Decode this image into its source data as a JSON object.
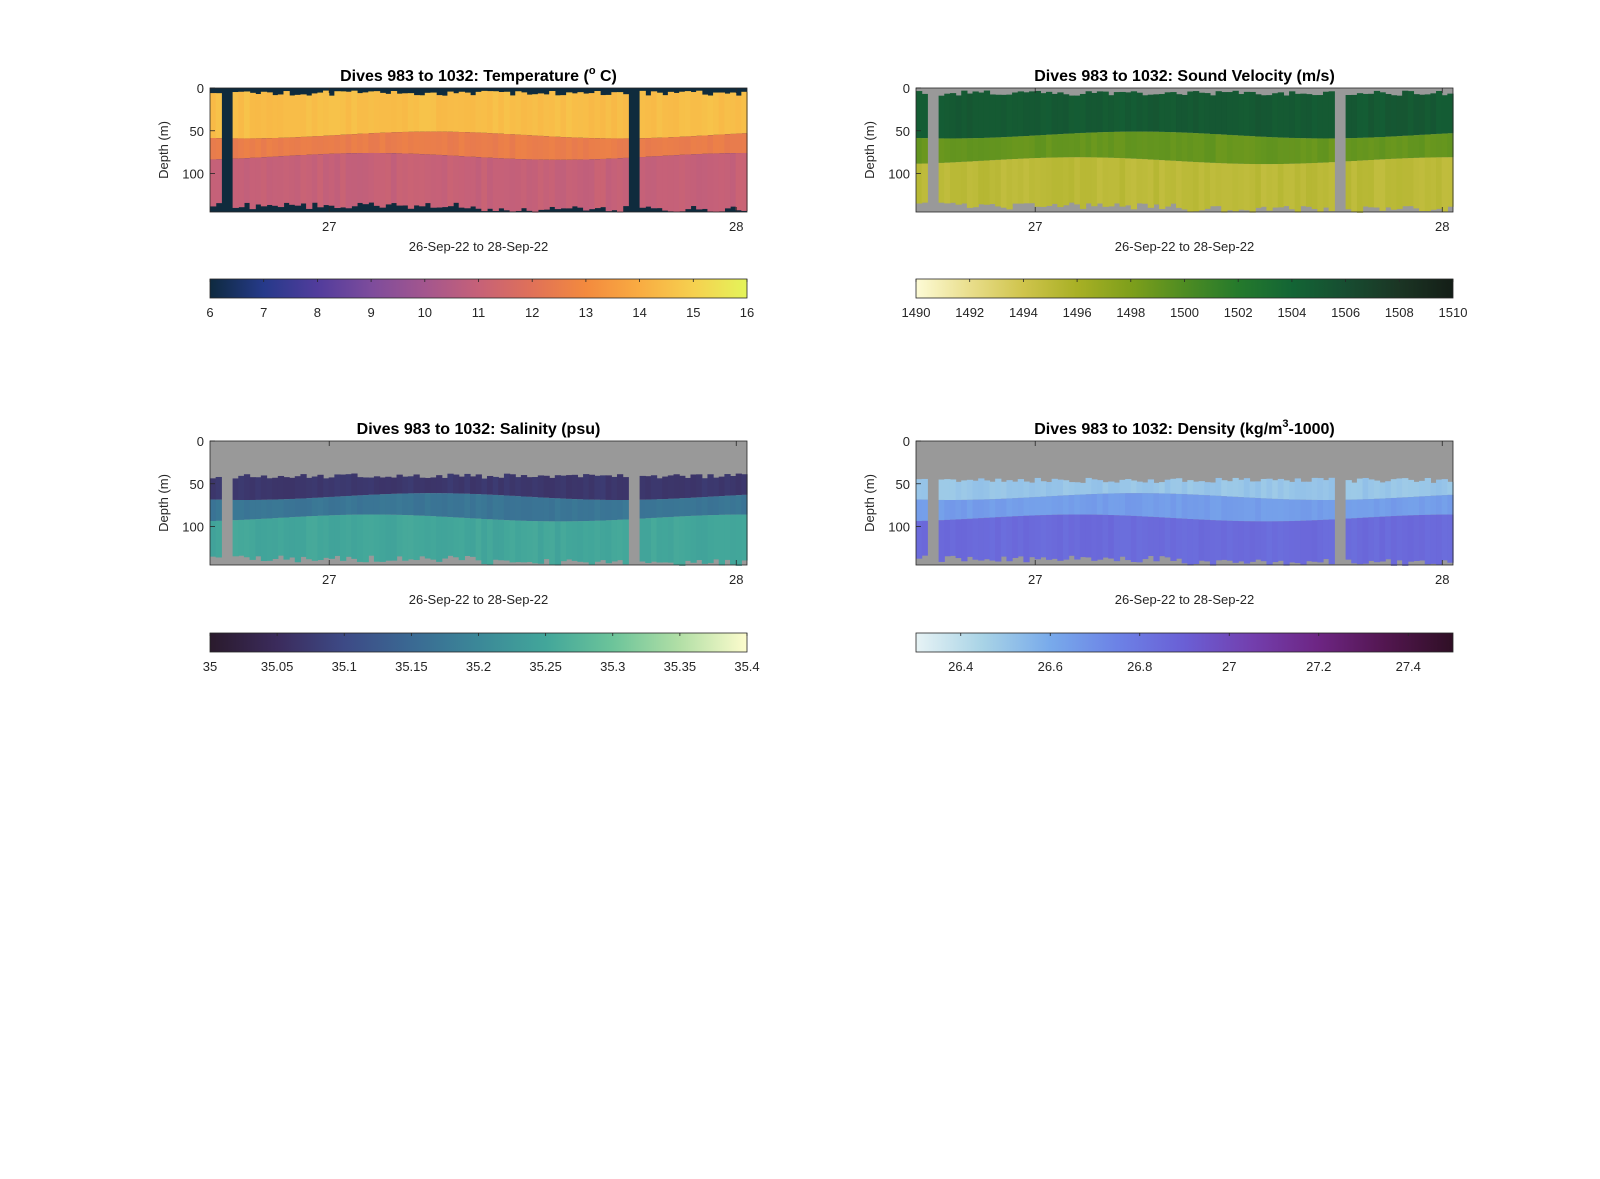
{
  "figure": {
    "common_xlabel": "26-Sep-22 to 28-Sep-22",
    "ylabel": "Depth (m)",
    "y_ticks": [
      "0",
      "50",
      "100"
    ],
    "x_ticks": [
      "27",
      "28"
    ],
    "mask_color": "#999999",
    "mask_color_temperature": "#0f2b3d"
  },
  "panels": [
    {
      "id": "temperature",
      "title_parts": {
        "pre": "Dives 983 to 1032: Temperature (",
        "sup": "o",
        "post": " C)"
      },
      "colorbar": {
        "ticks": [
          "6",
          "7",
          "8",
          "9",
          "10",
          "11",
          "12",
          "13",
          "14",
          "15",
          "16"
        ],
        "range": [
          6,
          16
        ],
        "stops": [
          "#0e2a3f",
          "#263a8a",
          "#513c9c",
          "#7d4c9c",
          "#a3568e",
          "#c66178",
          "#e07158",
          "#f38a3e",
          "#f9ac42",
          "#f6d04f",
          "#e4f45a"
        ]
      }
    },
    {
      "id": "sound-velocity",
      "title_parts": {
        "pre": "Dives 983 to 1032: Sound Velocity (m/s)",
        "sup": "",
        "post": ""
      },
      "colorbar": {
        "ticks": [
          "1490",
          "1492",
          "1494",
          "1496",
          "1498",
          "1500",
          "1502",
          "1504",
          "1506",
          "1508",
          "1510"
        ],
        "range": [
          1490,
          1510
        ],
        "stops": [
          "#fdfbd6",
          "#e9de8c",
          "#cfc44c",
          "#a8b025",
          "#7e9f1b",
          "#4e8c22",
          "#257a2c",
          "#136535",
          "#174d31",
          "#1b3524",
          "#141e17"
        ]
      }
    },
    {
      "id": "salinity",
      "title_parts": {
        "pre": "Dives 983 to 1032: Salinity (psu)",
        "sup": "",
        "post": ""
      },
      "colorbar": {
        "ticks": [
          "35",
          "35.05",
          "35.1",
          "35.15",
          "35.2",
          "35.25",
          "35.3",
          "35.35",
          "35.4"
        ],
        "range": [
          35,
          35.4
        ],
        "stops": [
          "#2a1a2c",
          "#3b2b5c",
          "#3d4a86",
          "#3a6993",
          "#3b8898",
          "#42a69a",
          "#6cc49a",
          "#b2dfa6",
          "#fdfccd"
        ]
      }
    },
    {
      "id": "density",
      "title_parts": {
        "pre": "Dives 983 to 1032: Density (kg/m",
        "sup": "3",
        "post": "-1000)"
      },
      "colorbar": {
        "ticks": [
          "26.4",
          "26.6",
          "26.8",
          "27",
          "27.2",
          "27.4"
        ],
        "range": [
          26.3,
          27.5
        ],
        "stops": [
          "#e7f3f5",
          "#a8d3e6",
          "#78aaeb",
          "#6c82e6",
          "#6a5fd5",
          "#733fae",
          "#6d2583",
          "#52164f",
          "#2f0f25"
        ]
      }
    }
  ],
  "chart_data": [
    {
      "type": "heatmap",
      "title": "Dives 983 to 1032: Temperature (o C)",
      "xlabel": "26-Sep-22 to 28-Sep-22",
      "ylabel": "Depth (m)",
      "y_range": [
        0,
        145
      ],
      "y_reversed": true,
      "x_ticks": [
        "27",
        "28"
      ],
      "colorbar_range": [
        6,
        16
      ],
      "layers": [
        {
          "depth_range_m": [
            5,
            55
          ],
          "value_approx": 14.5
        },
        {
          "depth_range_m": [
            55,
            80
          ],
          "value_approx": 12.5
        },
        {
          "depth_range_m": [
            80,
            140
          ],
          "value_approx": 11
        }
      ],
      "missing_data_gaps": [
        "near start of record",
        "mid 27-Sep (late)"
      ]
    },
    {
      "type": "heatmap",
      "title": "Dives 983 to 1032: Sound Velocity (m/s)",
      "xlabel": "26-Sep-22 to 28-Sep-22",
      "ylabel": "Depth (m)",
      "y_range": [
        0,
        145
      ],
      "y_reversed": true,
      "x_ticks": [
        "27",
        "28"
      ],
      "colorbar_range": [
        1490,
        1510
      ],
      "layers": [
        {
          "depth_range_m": [
            5,
            55
          ],
          "value_approx": 1505
        },
        {
          "depth_range_m": [
            55,
            85
          ],
          "value_approx": 1499
        },
        {
          "depth_range_m": [
            85,
            140
          ],
          "value_approx": 1495
        }
      ]
    },
    {
      "type": "heatmap",
      "title": "Dives 983 to 1032: Salinity (psu)",
      "xlabel": "26-Sep-22 to 28-Sep-22",
      "ylabel": "Depth (m)",
      "y_range": [
        0,
        145
      ],
      "y_reversed": true,
      "x_ticks": [
        "27",
        "28"
      ],
      "colorbar_range": [
        35,
        35.4
      ],
      "layers": [
        {
          "depth_range_m": [
            40,
            65
          ],
          "value_approx": 35.07
        },
        {
          "depth_range_m": [
            65,
            90
          ],
          "value_approx": 35.17
        },
        {
          "depth_range_m": [
            90,
            140
          ],
          "value_approx": 35.25
        }
      ]
    },
    {
      "type": "heatmap",
      "title": "Dives 983 to 1032: Density (kg/m3-1000)",
      "xlabel": "26-Sep-22 to 28-Sep-22",
      "ylabel": "Depth (m)",
      "y_range": [
        0,
        145
      ],
      "y_reversed": true,
      "x_ticks": [
        "27",
        "28"
      ],
      "colorbar_range": [
        26.3,
        27.5
      ],
      "layers": [
        {
          "depth_range_m": [
            45,
            65
          ],
          "value_approx": 26.5
        },
        {
          "depth_range_m": [
            65,
            90
          ],
          "value_approx": 26.65
        },
        {
          "depth_range_m": [
            90,
            140
          ],
          "value_approx": 26.85
        }
      ]
    }
  ]
}
